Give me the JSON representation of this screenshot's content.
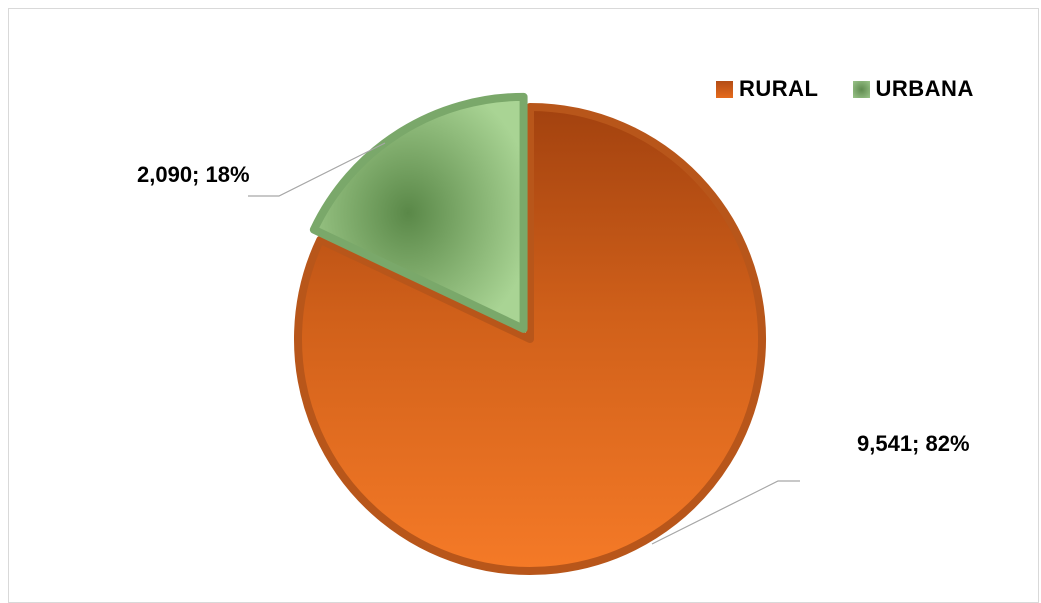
{
  "chart_data": {
    "type": "pie",
    "title": "",
    "slices": [
      {
        "name": "RURAL",
        "value": 9541,
        "percent": 82,
        "label": "9,541; 82%",
        "color": "#d2611b"
      },
      {
        "name": "URBANA",
        "value": 2090,
        "percent": 18,
        "label": "2,090; 18%",
        "color": "#8fbf7a"
      }
    ],
    "legend": {
      "placement": "top-right",
      "items": [
        "RURAL",
        "URBANA"
      ]
    }
  }
}
